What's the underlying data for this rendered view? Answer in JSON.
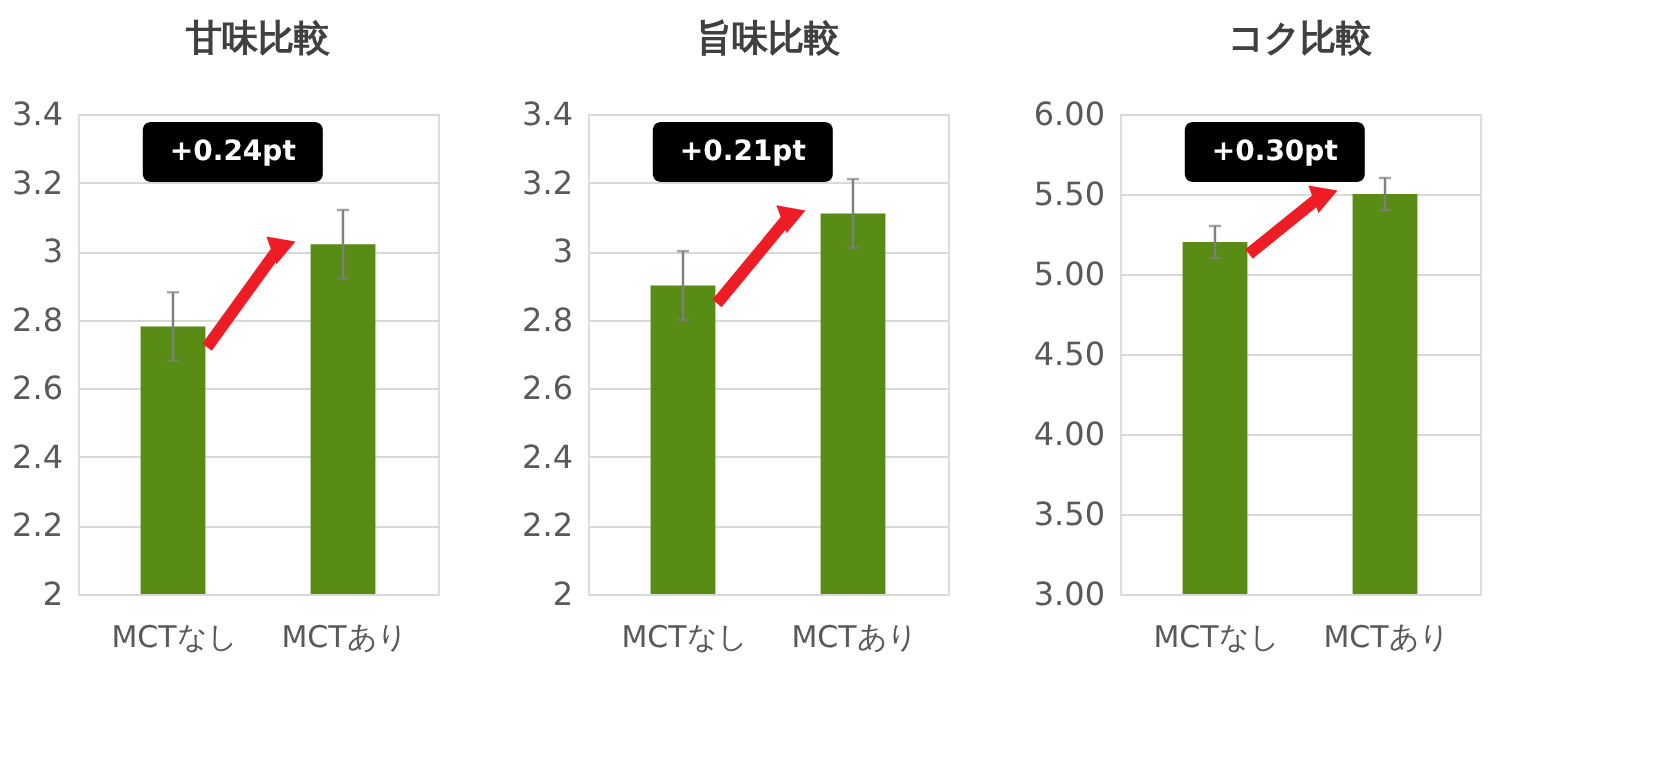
{
  "chart_data": [
    {
      "type": "bar",
      "title": "甘味比較",
      "categories": [
        "MCTなし",
        "MCTあり"
      ],
      "values": [
        2.78,
        3.02
      ],
      "errors": [
        0.1,
        0.1
      ],
      "color": "#588c14",
      "ylim": [
        2,
        3.4
      ],
      "yticks": [
        2,
        2.2,
        2.4,
        2.6,
        2.8,
        3,
        3.2,
        3.4
      ],
      "grid": "y",
      "annotations": [
        "+0.24pt"
      ]
    },
    {
      "type": "bar",
      "title": "旨味比較",
      "categories": [
        "MCTなし",
        "MCTあり"
      ],
      "values": [
        2.9,
        3.11
      ],
      "errors": [
        0.1,
        0.1
      ],
      "color": "#588c14",
      "ylim": [
        2,
        3.4
      ],
      "yticks": [
        2,
        2.2,
        2.4,
        2.6,
        2.8,
        3,
        3.2,
        3.4
      ],
      "grid": "y",
      "annotations": [
        "+0.21pt"
      ]
    },
    {
      "type": "bar",
      "title": "コク比較",
      "categories": [
        "MCTなし",
        "MCTあり"
      ],
      "values": [
        5.2,
        5.5
      ],
      "errors": [
        0.1,
        0.1
      ],
      "color": "#588c14",
      "ylim": [
        3,
        6
      ],
      "yticks": [
        {
          "value": 3,
          "label": "3.00"
        },
        {
          "value": 3.5,
          "label": "3.50"
        },
        {
          "value": 4,
          "label": "4.00"
        },
        {
          "value": 4.5,
          "label": "4.50"
        },
        {
          "value": 5,
          "label": "5.00"
        },
        {
          "value": 5.5,
          "label": "5.50"
        },
        {
          "value": 6,
          "label": "6.00"
        }
      ],
      "grid": "y",
      "annotations": [
        "+0.30pt"
      ]
    }
  ]
}
